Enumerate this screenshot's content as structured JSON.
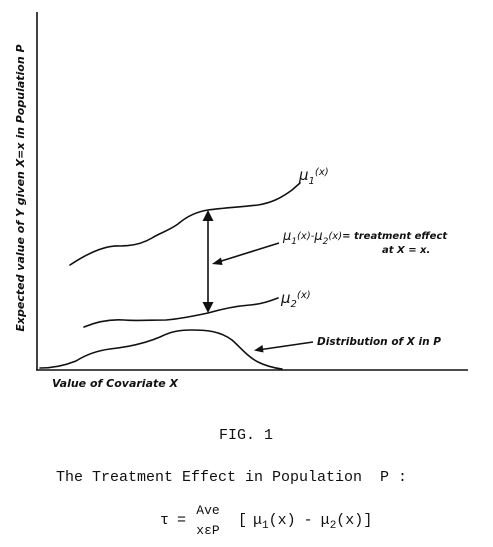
{
  "axes": {
    "y_label": "Expected value of Y given X=x in Population P",
    "x_label": "Value of Covariate X"
  },
  "curves": {
    "mu1": {
      "label": "μ",
      "subscript": "1",
      "argument": "(x)"
    },
    "mu2": {
      "label": "μ",
      "subscript": "2",
      "argument": "(x)"
    },
    "distribution": {
      "label": "Distribution of X in P"
    }
  },
  "annotation": {
    "lhs_mu": "μ",
    "lhs_sub1": "1",
    "lhs_arg1": "(x)-",
    "lhs_sub2": "2",
    "lhs_arg2": "(x)",
    "rhs_line1": "= treatment effect",
    "rhs_line2": "at X = x."
  },
  "caption": {
    "fig_label": "FIG. 1",
    "title": "The Treatment Effect in Population  P :",
    "formula": {
      "tau": "τ",
      "equals": "=",
      "ave_top": "Ave",
      "ave_bottom": "xεP",
      "open": "[",
      "mu_a": "μ",
      "sub_a": "1",
      "arg_a": "(x)",
      "minus": "-",
      "mu_b": "μ",
      "sub_b": "2",
      "arg_b": "(x)",
      "close": "]"
    }
  }
}
